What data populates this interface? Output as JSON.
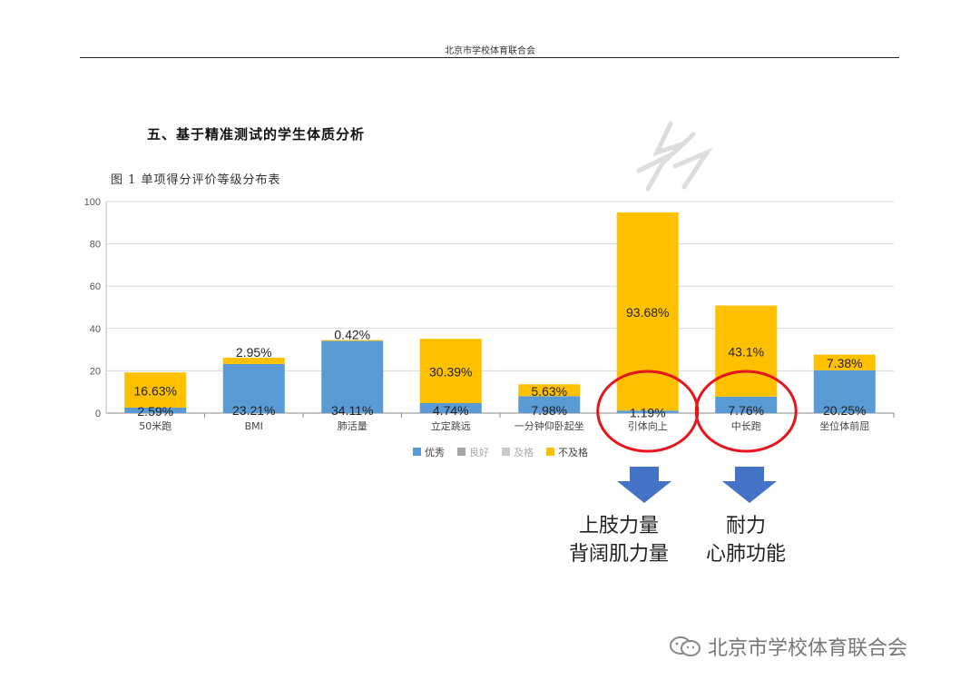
{
  "document": {
    "header": "北京市学校体育联合会",
    "section_title": "五、基于精准测试的学生体质分析",
    "figure_caption": "图 1  单项得分评价等级分布表"
  },
  "chart_data": {
    "type": "bar",
    "stacked": true,
    "categories": [
      "50米跑",
      "BMI",
      "肺活量",
      "立定跳远",
      "一分钟仰卧起坐",
      "引体向上",
      "中长跑",
      "坐位体前屈"
    ],
    "series": [
      {
        "name": "优秀",
        "color": "#5B9BD5",
        "values": [
          2.59,
          23.21,
          34.11,
          4.74,
          7.98,
          1.19,
          7.76,
          20.25
        ]
      },
      {
        "name": "良好",
        "color": "#A5A5A5",
        "values": [
          0,
          0,
          0,
          0,
          0,
          0,
          0,
          0
        ]
      },
      {
        "name": "及格",
        "color": "#C9C9C9",
        "values": [
          0,
          0,
          0,
          0,
          0,
          0,
          0,
          0
        ]
      },
      {
        "name": "不及格",
        "color": "#FFC000",
        "values": [
          16.63,
          2.95,
          0.42,
          30.39,
          5.63,
          93.68,
          43.1,
          7.38
        ]
      }
    ],
    "labels": {
      "优秀": [
        "2.59%",
        "23.21%",
        "34.11%",
        "4.74%",
        "7.98%",
        "1.19%",
        "7.76%",
        "20.25%"
      ],
      "不及格": [
        "16.63%",
        "2.95%",
        "0.42%",
        "30.39%",
        "5.63%",
        "93.68%",
        "43.1%",
        "7.38%"
      ]
    },
    "ylim": [
      0,
      100
    ],
    "yticks": [
      0,
      20,
      40,
      60,
      80,
      100
    ],
    "grid": true,
    "legend_position": "bottom",
    "highlighted_categories": [
      "引体向上",
      "中长跑"
    ]
  },
  "annotations": {
    "left": {
      "line1": "上肢力量",
      "line2": "背阔肌力量"
    },
    "right": {
      "line1": "耐力",
      "line2": "心肺功能"
    }
  },
  "watermark": "北京市学校体育联合会"
}
